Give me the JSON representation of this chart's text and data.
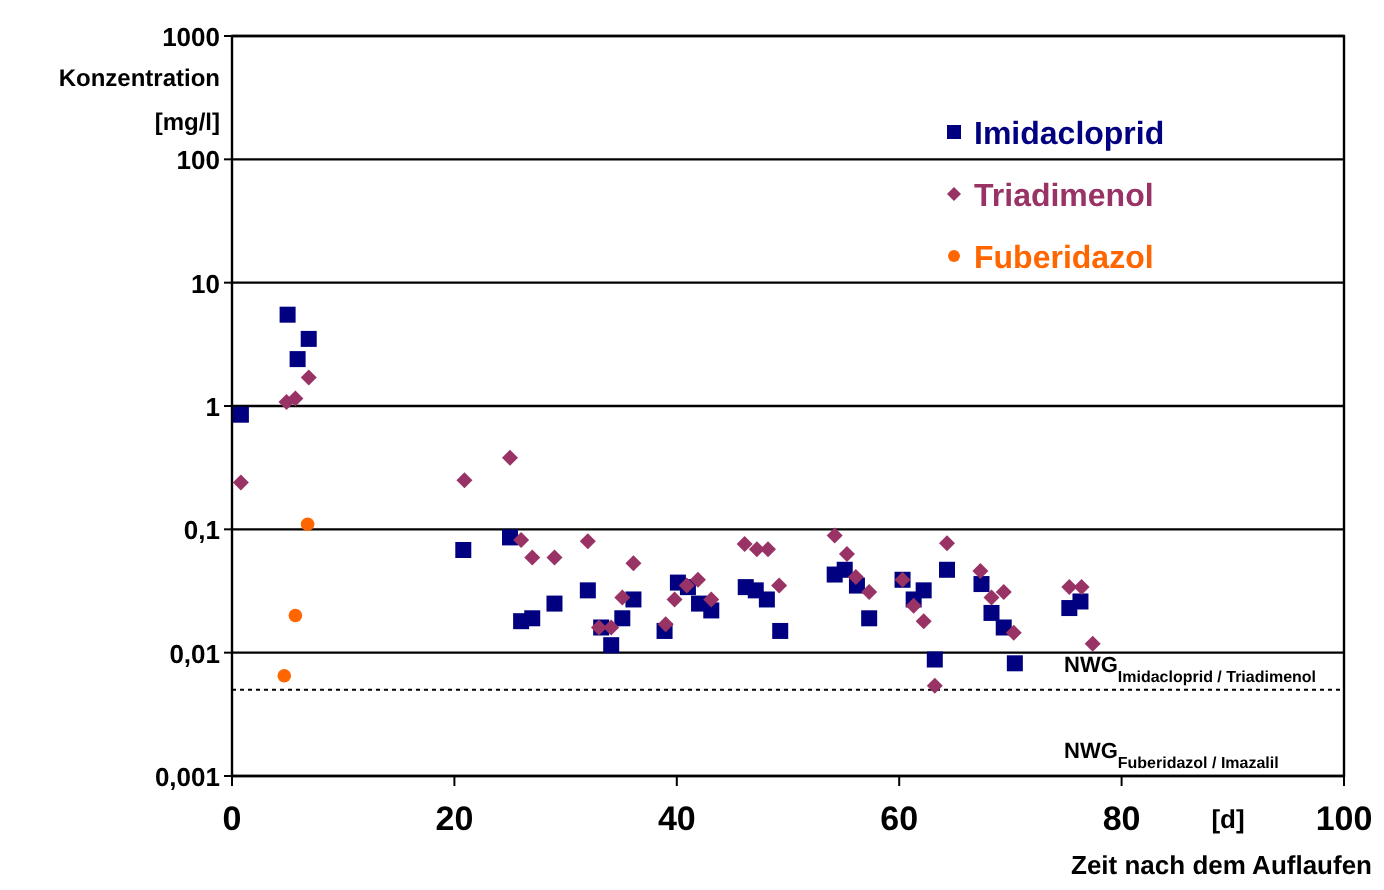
{
  "chart_data": {
    "type": "scatter",
    "xlabel": "Zeit nach dem Auflaufen",
    "ylabel": "Konzentration [mg/l]",
    "annotations": [
      "[d]",
      "NWG$_{Fuberidazol / Imazalil}$"
    ],
    "xlim": [
      0,
      100
    ],
    "xticks": [
      0,
      20,
      40,
      60,
      80,
      100
    ],
    "ylim": [
      0.001,
      1000
    ],
    "yticks": [
      {
        "value": 0.001,
        "label": "0,001"
      },
      {
        "value": 0.01,
        "label": "0,01"
      },
      {
        "value": 0.1,
        "label": "0,1"
      },
      1,
      10,
      100,
      1000
    ],
    "log": "y",
    "grid": "y",
    "legend": "top right",
    "ref_lines": [
      {
        "axis": "y",
        "value": 0.005,
        "label": "NWG$_{Imidacloprid / Triadimenol}$",
        "color": "#000000",
        "line_style": "dotted"
      }
    ],
    "series": [
      {
        "name": "Imidacloprid",
        "color": "#000080",
        "marker": "square",
        "x": [
          0.8,
          5.0,
          5.9,
          6.9,
          20.8,
          25.0,
          26.0,
          27.0,
          29.0,
          32.0,
          33.2,
          34.1,
          35.1,
          36.1,
          38.9,
          40.1,
          41.0,
          42.0,
          43.1,
          46.2,
          47.1,
          48.1,
          49.3,
          54.2,
          55.1,
          56.2,
          57.3,
          60.3,
          61.3,
          62.2,
          63.2,
          64.3,
          67.4,
          68.3,
          69.4,
          70.4,
          75.3,
          76.3
        ],
        "values": [
          0.85,
          5.5,
          2.4,
          3.5,
          0.068,
          0.086,
          0.018,
          0.019,
          0.025,
          0.032,
          0.016,
          0.0115,
          0.019,
          0.027,
          0.015,
          0.037,
          0.034,
          0.025,
          0.022,
          0.034,
          0.032,
          0.027,
          0.015,
          0.043,
          0.047,
          0.035,
          0.019,
          0.039,
          0.027,
          0.032,
          0.0088,
          0.047,
          0.036,
          0.021,
          0.016,
          0.0082,
          0.023,
          0.026
        ]
      },
      {
        "name": "Triadimenol",
        "color": "#993366",
        "marker": "diamond",
        "x": [
          0.8,
          4.9,
          5.7,
          6.9,
          20.9,
          25.0,
          26.0,
          27.0,
          29.0,
          32.0,
          33.0,
          34.1,
          35.1,
          36.1,
          39.0,
          39.8,
          40.9,
          41.9,
          43.1,
          46.1,
          47.2,
          48.2,
          49.2,
          54.2,
          55.3,
          56.1,
          57.3,
          60.3,
          61.3,
          62.2,
          63.2,
          64.3,
          67.3,
          68.3,
          69.4,
          70.3,
          75.3,
          76.4,
          77.4
        ],
        "values": [
          0.24,
          1.08,
          1.15,
          1.7,
          0.25,
          0.38,
          0.082,
          0.059,
          0.059,
          0.08,
          0.016,
          0.016,
          0.028,
          0.053,
          0.017,
          0.027,
          0.035,
          0.039,
          0.027,
          0.076,
          0.069,
          0.069,
          0.035,
          0.089,
          0.063,
          0.041,
          0.031,
          0.039,
          0.024,
          0.018,
          0.0054,
          0.077,
          0.046,
          0.028,
          0.031,
          0.0145,
          0.034,
          0.034,
          0.0118
        ]
      },
      {
        "name": "Fuberidazol",
        "color": "#ff6600",
        "marker": "circle",
        "x": [
          4.7,
          5.7,
          6.8
        ],
        "values": [
          0.0065,
          0.02,
          0.11
        ]
      }
    ]
  }
}
